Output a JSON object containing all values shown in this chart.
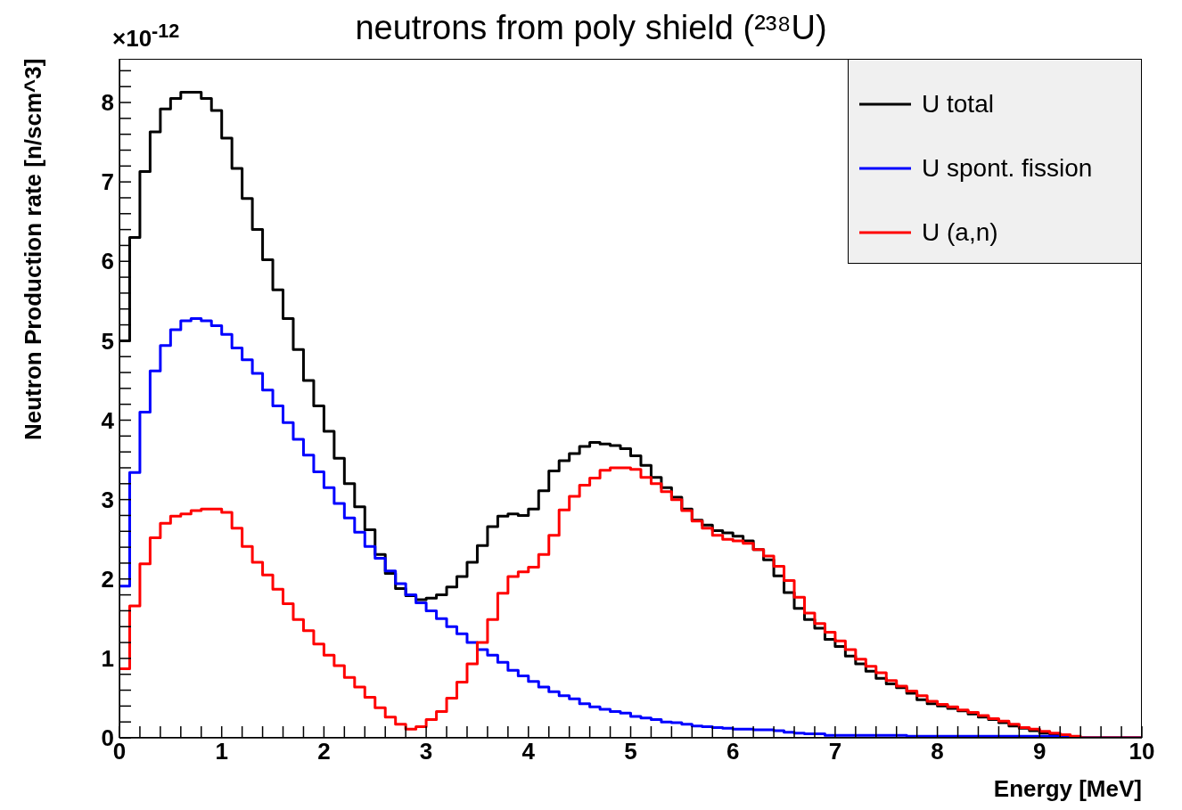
{
  "chart_data": {
    "type": "histogram",
    "title": "neutrons from poly shield (²³⁸U)",
    "xlabel": "Energy [MeV]",
    "ylabel": "Neutron Production rate [n/scm^3]",
    "annotations": [
      "×10$^{-12}$"
    ],
    "legend": "top right",
    "line_style": "solid",
    "xlim": [
      0,
      10
    ],
    "ylim": [
      0,
      8.55
    ],
    "xticks": [
      0,
      {
        "value": 0.2,
        "label": null
      },
      {
        "value": 0.4,
        "label": null
      },
      {
        "value": 0.6,
        "label": null
      },
      {
        "value": 0.8,
        "label": null
      },
      1,
      {
        "value": 1.2,
        "label": null
      },
      {
        "value": 1.4,
        "label": null
      },
      {
        "value": 1.6,
        "label": null
      },
      {
        "value": 1.8,
        "label": null
      },
      2,
      {
        "value": 2.2,
        "label": null
      },
      {
        "value": 2.4,
        "label": null
      },
      {
        "value": 2.6,
        "label": null
      },
      {
        "value": 2.8,
        "label": null
      },
      3,
      {
        "value": 3.2,
        "label": null
      },
      {
        "value": 3.4,
        "label": null
      },
      {
        "value": 3.6,
        "label": null
      },
      {
        "value": 3.8,
        "label": null
      },
      4,
      {
        "value": 4.2,
        "label": null
      },
      {
        "value": 4.4,
        "label": null
      },
      {
        "value": 4.6,
        "label": null
      },
      {
        "value": 4.8,
        "label": null
      },
      5,
      {
        "value": 5.2,
        "label": null
      },
      {
        "value": 5.4,
        "label": null
      },
      {
        "value": 5.6,
        "label": null
      },
      {
        "value": 5.8,
        "label": null
      },
      6,
      {
        "value": 6.2,
        "label": null
      },
      {
        "value": 6.4,
        "label": null
      },
      {
        "value": 6.6,
        "label": null
      },
      {
        "value": 6.8,
        "label": null
      },
      7,
      {
        "value": 7.2,
        "label": null
      },
      {
        "value": 7.4,
        "label": null
      },
      {
        "value": 7.6,
        "label": null
      },
      {
        "value": 7.8,
        "label": null
      },
      8,
      {
        "value": 8.2,
        "label": null
      },
      {
        "value": 8.4,
        "label": null
      },
      {
        "value": 8.6,
        "label": null
      },
      {
        "value": 8.8,
        "label": null
      },
      9,
      {
        "value": 9.2,
        "label": null
      },
      {
        "value": 9.4,
        "label": null
      },
      {
        "value": 9.6,
        "label": null
      },
      {
        "value": 9.8,
        "label": null
      },
      10
    ],
    "yticks": [
      0,
      {
        "value": 0.2,
        "label": null
      },
      {
        "value": 0.4,
        "label": null
      },
      {
        "value": 0.6,
        "label": null
      },
      {
        "value": 0.8,
        "label": null
      },
      1,
      {
        "value": 1.2,
        "label": null
      },
      {
        "value": 1.4,
        "label": null
      },
      {
        "value": 1.6,
        "label": null
      },
      {
        "value": 1.8,
        "label": null
      },
      2,
      {
        "value": 2.2,
        "label": null
      },
      {
        "value": 2.4,
        "label": null
      },
      {
        "value": 2.6,
        "label": null
      },
      {
        "value": 2.8,
        "label": null
      },
      3,
      {
        "value": 3.2,
        "label": null
      },
      {
        "value": 3.4,
        "label": null
      },
      {
        "value": 3.6,
        "label": null
      },
      {
        "value": 3.8,
        "label": null
      },
      4,
      {
        "value": 4.2,
        "label": null
      },
      {
        "value": 4.4,
        "label": null
      },
      {
        "value": 4.6,
        "label": null
      },
      {
        "value": 4.8,
        "label": null
      },
      5,
      {
        "value": 5.2,
        "label": null
      },
      {
        "value": 5.4,
        "label": null
      },
      {
        "value": 5.6,
        "label": null
      },
      {
        "value": 5.8,
        "label": null
      },
      6,
      {
        "value": 6.2,
        "label": null
      },
      {
        "value": 6.4,
        "label": null
      },
      {
        "value": 6.6,
        "label": null
      },
      {
        "value": 6.8,
        "label": null
      },
      7,
      {
        "value": 7.2,
        "label": null
      },
      {
        "value": 7.4,
        "label": null
      },
      {
        "value": 7.6,
        "label": null
      },
      {
        "value": 7.8,
        "label": null
      },
      8,
      {
        "value": 8.2,
        "label": null
      },
      {
        "value": 8.4,
        "label": null
      }
    ],
    "bins": [
      0,
      0.1,
      0.2,
      0.3,
      0.4,
      0.5,
      0.6,
      0.7,
      0.8,
      0.9,
      1,
      1.1,
      1.2,
      1.3,
      1.4,
      1.5,
      1.6,
      1.7,
      1.8,
      1.9,
      2,
      2.1,
      2.2,
      2.3,
      2.4,
      2.5,
      2.6,
      2.7,
      2.8,
      2.9,
      3,
      3.1,
      3.2,
      3.3,
      3.4,
      3.5,
      3.6,
      3.7,
      3.8,
      3.9,
      4,
      4.1,
      4.2,
      4.3,
      4.4,
      4.5,
      4.6,
      4.7,
      4.8,
      4.9,
      5,
      5.1,
      5.2,
      5.3,
      5.4,
      5.5,
      5.6,
      5.7,
      5.8,
      5.9,
      6,
      6.1,
      6.2,
      6.3,
      6.4,
      6.5,
      6.6,
      6.7,
      6.8,
      6.9,
      7,
      7.1,
      7.2,
      7.3,
      7.4,
      7.5,
      7.6,
      7.7,
      7.8,
      7.9,
      8,
      8.1,
      8.2,
      8.3,
      8.4,
      8.5,
      8.6,
      8.7,
      8.8,
      8.9,
      9,
      9.1,
      9.2,
      9.3,
      9.4,
      9.5,
      9.6,
      9.7,
      9.8,
      9.9,
      10
    ],
    "series": [
      {
        "name": "U total",
        "color": "#000000",
        "values": [
          5.0,
          6.3,
          7.13,
          7.63,
          7.92,
          8.05,
          8.13,
          8.13,
          8.05,
          7.9,
          7.55,
          7.17,
          6.79,
          6.4,
          6.02,
          5.64,
          5.28,
          4.89,
          4.5,
          4.18,
          3.86,
          3.52,
          3.2,
          2.91,
          2.62,
          2.31,
          2.07,
          1.88,
          1.79,
          1.74,
          1.76,
          1.8,
          1.9,
          2.03,
          2.21,
          2.42,
          2.66,
          2.79,
          2.82,
          2.8,
          2.88,
          3.11,
          3.36,
          3.49,
          3.58,
          3.67,
          3.72,
          3.7,
          3.68,
          3.64,
          3.55,
          3.43,
          3.28,
          3.15,
          3.03,
          2.88,
          2.74,
          2.68,
          2.61,
          2.58,
          2.54,
          2.48,
          2.37,
          2.24,
          2.04,
          1.83,
          1.63,
          1.49,
          1.38,
          1.24,
          1.15,
          1.03,
          0.93,
          0.84,
          0.75,
          0.68,
          0.63,
          0.56,
          0.48,
          0.43,
          0.4,
          0.37,
          0.34,
          0.3,
          0.26,
          0.23,
          0.19,
          0.15,
          0.12,
          0.09,
          0.06,
          0.04,
          0.02,
          0.01,
          0,
          0,
          0,
          0,
          0,
          0
        ]
      },
      {
        "name": "U spont. fission",
        "color": "#0000ff",
        "values": [
          1.91,
          3.34,
          4.1,
          4.62,
          4.94,
          5.14,
          5.25,
          5.28,
          5.25,
          5.19,
          5.08,
          4.91,
          4.76,
          4.59,
          4.38,
          4.18,
          3.97,
          3.76,
          3.56,
          3.35,
          3.15,
          2.95,
          2.77,
          2.59,
          2.41,
          2.26,
          2.1,
          1.94,
          1.8,
          1.7,
          1.6,
          1.5,
          1.4,
          1.31,
          1.2,
          1.11,
          1.04,
          0.95,
          0.85,
          0.78,
          0.71,
          0.64,
          0.58,
          0.53,
          0.49,
          0.43,
          0.39,
          0.36,
          0.33,
          0.31,
          0.27,
          0.25,
          0.23,
          0.2,
          0.19,
          0.17,
          0.15,
          0.14,
          0.13,
          0.12,
          0.11,
          0.11,
          0.1,
          0.1,
          0.09,
          0.07,
          0.06,
          0.05,
          0.05,
          0.03,
          0.03,
          0.03,
          0.03,
          0.03,
          0.03,
          0.03,
          0.03,
          0.02,
          0.02,
          0.02,
          0.02,
          0.02,
          0.02,
          0.02,
          0.02,
          0.02,
          0.02,
          0.02,
          0.02,
          0.02,
          0.02,
          0.02,
          0.02,
          0,
          0,
          0,
          0,
          0,
          0,
          0
        ]
      },
      {
        "name": "U (a,n)",
        "color": "#ff0000",
        "values": [
          0.87,
          1.66,
          2.19,
          2.52,
          2.7,
          2.79,
          2.82,
          2.86,
          2.88,
          2.88,
          2.84,
          2.64,
          2.41,
          2.21,
          2.05,
          1.87,
          1.69,
          1.49,
          1.35,
          1.18,
          1.04,
          0.91,
          0.76,
          0.64,
          0.51,
          0.38,
          0.26,
          0.17,
          0.11,
          0.14,
          0.23,
          0.33,
          0.5,
          0.7,
          0.93,
          1.2,
          1.49,
          1.82,
          2.03,
          2.09,
          2.15,
          2.31,
          2.55,
          2.87,
          3.04,
          3.18,
          3.27,
          3.37,
          3.4,
          3.4,
          3.38,
          3.28,
          3.2,
          3.1,
          3.0,
          2.86,
          2.73,
          2.64,
          2.55,
          2.5,
          2.48,
          2.45,
          2.37,
          2.29,
          2.16,
          1.98,
          1.77,
          1.57,
          1.44,
          1.33,
          1.22,
          1.11,
          0.99,
          0.9,
          0.82,
          0.72,
          0.65,
          0.59,
          0.53,
          0.46,
          0.42,
          0.39,
          0.35,
          0.32,
          0.28,
          0.24,
          0.21,
          0.17,
          0.13,
          0.11,
          0.08,
          0.06,
          0.04,
          0.02,
          0,
          0,
          0,
          0,
          0,
          0
        ]
      }
    ]
  }
}
